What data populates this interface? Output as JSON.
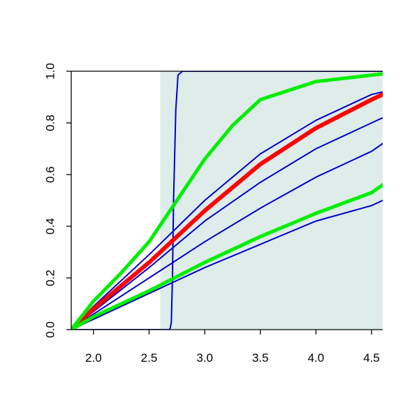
{
  "chart_data": {
    "type": "line",
    "title": "",
    "xlabel": "",
    "ylabel": "",
    "xlim": [
      1.8,
      4.6
    ],
    "ylim": [
      0,
      1
    ],
    "x_ticks": [
      2.0,
      2.5,
      3.0,
      3.5,
      4.0,
      4.5
    ],
    "x_tick_labels": [
      "2.0",
      "2.5",
      "3.0",
      "3.5",
      "4.0",
      "4.5"
    ],
    "y_ticks": [
      0.0,
      0.2,
      0.4,
      0.6,
      0.8,
      1.0
    ],
    "y_tick_labels": [
      "0.0",
      "0.2",
      "0.4",
      "0.6",
      "0.8",
      "1.0"
    ],
    "grid": false,
    "legend": "none",
    "shaded_region": {
      "x_start": 2.6,
      "x_end": 4.6,
      "color": "#deecea"
    },
    "series": [
      {
        "color": "#0000cc",
        "width": 2,
        "x": [
          1.8,
          2.68,
          2.69,
          2.7,
          2.71,
          2.72,
          2.74,
          2.76,
          2.8,
          3.0,
          4.6
        ],
        "y": [
          0,
          0,
          0.005,
          0.03,
          0.2,
          0.5,
          0.85,
          0.985,
          1,
          1,
          1
        ]
      },
      {
        "color": "#0000cc",
        "width": 2,
        "x": [
          1.8,
          2.0,
          2.5,
          3.0,
          3.5,
          4.0,
          4.5,
          4.6
        ],
        "y": [
          0,
          0.04,
          0.14,
          0.24,
          0.33,
          0.42,
          0.48,
          0.5
        ]
      },
      {
        "color": "#0000cc",
        "width": 2,
        "x": [
          1.8,
          2.0,
          2.5,
          3.0,
          3.5,
          4.0,
          4.5,
          4.6
        ],
        "y": [
          0,
          0.06,
          0.2,
          0.34,
          0.47,
          0.59,
          0.69,
          0.72
        ]
      },
      {
        "color": "#0000cc",
        "width": 2,
        "x": [
          1.8,
          2.0,
          2.5,
          3.0,
          3.5,
          4.0,
          4.5,
          4.6
        ],
        "y": [
          0,
          0.07,
          0.24,
          0.42,
          0.57,
          0.7,
          0.8,
          0.82
        ]
      },
      {
        "color": "#0000cc",
        "width": 2,
        "x": [
          1.8,
          2.0,
          2.5,
          3.0,
          3.5,
          4.0,
          4.5,
          4.6
        ],
        "y": [
          0,
          0.09,
          0.29,
          0.5,
          0.68,
          0.81,
          0.91,
          0.92
        ]
      },
      {
        "color": "#ff0000",
        "width": 6,
        "x": [
          1.8,
          2.0,
          2.5,
          3.0,
          3.5,
          4.0,
          4.5,
          4.6
        ],
        "y": [
          0,
          0.08,
          0.26,
          0.46,
          0.64,
          0.78,
          0.89,
          0.91
        ]
      },
      {
        "color": "#00ee00",
        "width": 5,
        "x": [
          1.8,
          2.0,
          2.5,
          3.0,
          3.5,
          4.0,
          4.5,
          4.6
        ],
        "y": [
          0,
          0.05,
          0.15,
          0.26,
          0.36,
          0.45,
          0.53,
          0.56
        ]
      },
      {
        "color": "#00ee00",
        "width": 5,
        "x": [
          1.8,
          2.0,
          2.25,
          2.5,
          2.75,
          3.0,
          3.25,
          3.5,
          4.0,
          4.5,
          4.6
        ],
        "y": [
          0,
          0.11,
          0.22,
          0.34,
          0.5,
          0.66,
          0.79,
          0.89,
          0.96,
          0.985,
          0.99
        ]
      }
    ]
  }
}
